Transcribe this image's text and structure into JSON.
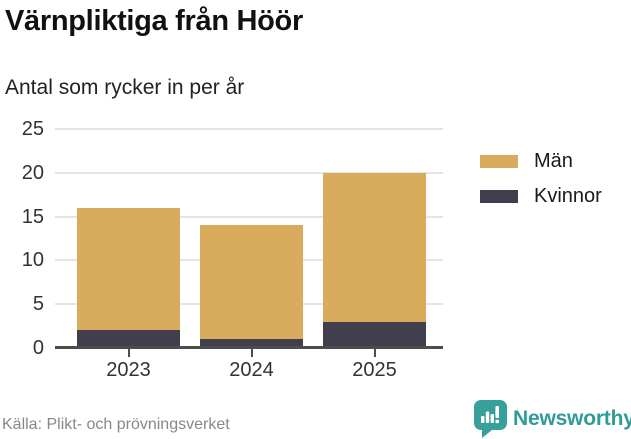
{
  "chart_data": {
    "type": "bar",
    "stacked": true,
    "title": "Värnpliktiga från Höör",
    "subtitle": "Antal som rycker in per år",
    "categories": [
      "2023",
      "2024",
      "2025"
    ],
    "series": [
      {
        "name": "Män",
        "color": "#d9ab5c",
        "values": [
          14,
          13,
          17
        ]
      },
      {
        "name": "Kvinnor",
        "color": "#413e4d",
        "values": [
          2,
          1,
          3
        ]
      }
    ],
    "stacked_totals": [
      16,
      14,
      20
    ],
    "ylim": [
      0,
      25
    ],
    "yticks": [
      0,
      5,
      10,
      15,
      20,
      25
    ],
    "grid": true,
    "legend_position": "right",
    "xlabel": "",
    "ylabel": ""
  },
  "footer": {
    "source": "Källa: Plikt- och prövningsverket",
    "logo_text": "Newsworthy"
  },
  "colors": {
    "accent_teal": "#2f9c98",
    "axis": "#4d4d4d",
    "gridline": "#e5e5e5",
    "label_text": "#333333",
    "muted_text": "#888888",
    "man_gold": "#d9ab5c",
    "kvinnor_dark": "#413e4d"
  }
}
